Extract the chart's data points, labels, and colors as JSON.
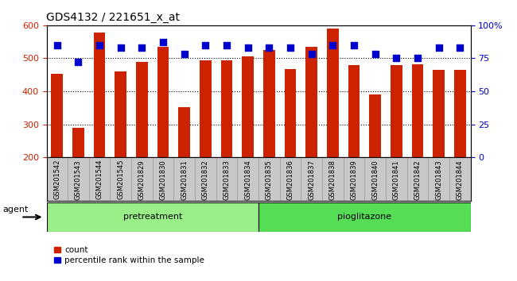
{
  "title": "GDS4132 / 221651_x_at",
  "samples": [
    "GSM201542",
    "GSM201543",
    "GSM201544",
    "GSM201545",
    "GSM201829",
    "GSM201830",
    "GSM201831",
    "GSM201832",
    "GSM201833",
    "GSM201834",
    "GSM201835",
    "GSM201836",
    "GSM201837",
    "GSM201838",
    "GSM201839",
    "GSM201840",
    "GSM201841",
    "GSM201842",
    "GSM201843",
    "GSM201844"
  ],
  "bar_values": [
    452,
    290,
    578,
    460,
    490,
    535,
    352,
    493,
    493,
    506,
    525,
    468,
    535,
    590,
    480,
    390,
    480,
    482,
    465,
    465
  ],
  "dot_values": [
    85,
    72,
    85,
    83,
    83,
    87,
    78,
    85,
    85,
    83,
    83,
    83,
    78,
    85,
    85,
    78,
    75,
    75,
    83,
    83
  ],
  "pretreatment_count": 10,
  "pioglitazone_count": 10,
  "bar_color": "#cc2200",
  "dot_color": "#0000cc",
  "ylim_left": [
    200,
    600
  ],
  "ylim_right": [
    0,
    100
  ],
  "yticks_left": [
    200,
    300,
    400,
    500,
    600
  ],
  "yticks_right": [
    0,
    25,
    50,
    75,
    100
  ],
  "ytick_labels_right": [
    "0",
    "25",
    "50",
    "75",
    "100%"
  ],
  "grid_values": [
    300,
    400,
    500
  ],
  "pretreatment_color": "#99ee88",
  "pioglitazone_color": "#55dd55",
  "agent_label": "agent",
  "pretreatment_label": "pretreatment",
  "pioglitazone_label": "pioglitazone",
  "legend_count_label": "count",
  "legend_pct_label": "percentile rank within the sample",
  "background_color": "#c8c8c8"
}
